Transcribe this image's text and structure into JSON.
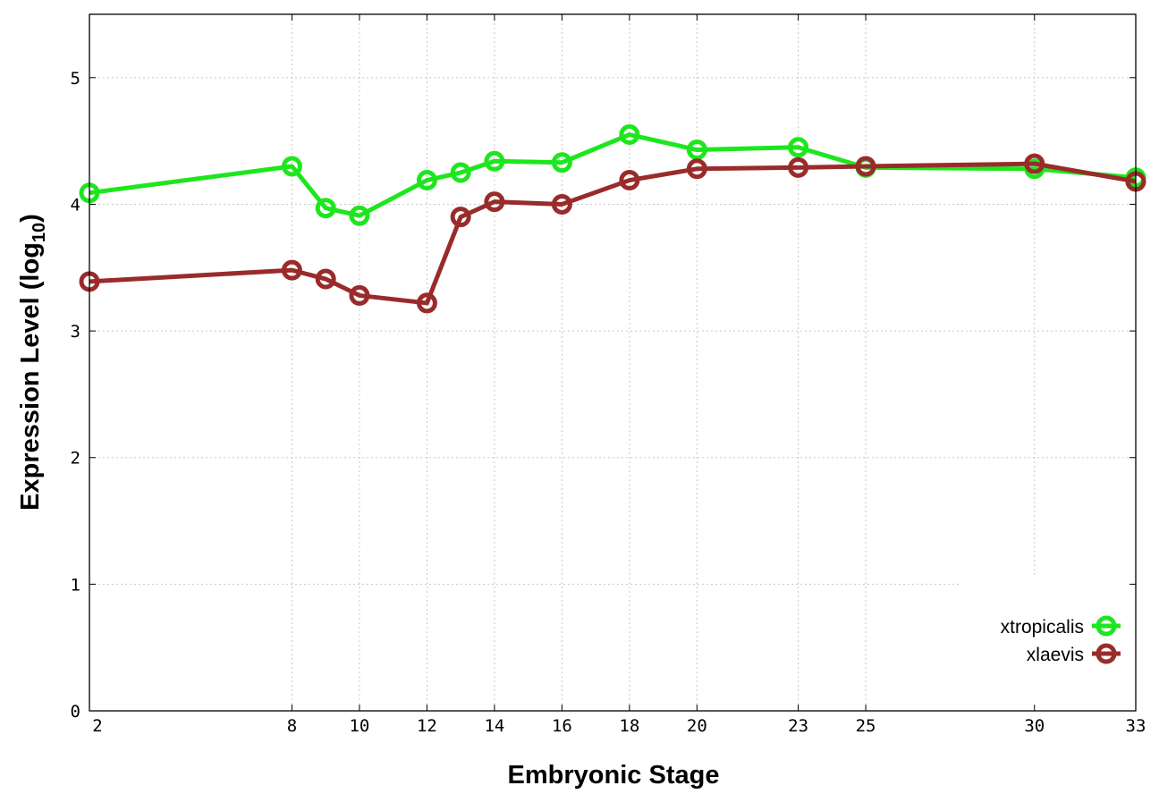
{
  "chart_data": {
    "type": "line",
    "xlabel": "Embryonic Stage",
    "ylabel": "Expression Level (log",
    "ylabel_sub": "10",
    "ylabel_close": ")",
    "xlim": [
      2,
      33
    ],
    "ylim": [
      0,
      5.5
    ],
    "x_ticks": [
      2,
      8,
      10,
      12,
      14,
      16,
      18,
      20,
      23,
      25,
      30,
      33
    ],
    "x_tick_labels": [
      "2",
      "8",
      "10",
      "12",
      "14",
      "16",
      "18",
      "20",
      "23",
      "25",
      "30",
      "33"
    ],
    "y_ticks": [
      0,
      1,
      2,
      3,
      4,
      5
    ],
    "y_tick_labels": [
      "0",
      "1",
      "2",
      "3",
      "4",
      "5"
    ],
    "grid": true,
    "legend_position": "bottom-right",
    "x": [
      2,
      8,
      9,
      10,
      12,
      13,
      14,
      16,
      18,
      20,
      23,
      25,
      30,
      33
    ],
    "series": [
      {
        "name": "xtropicalis",
        "color": "#1ee61e",
        "values": [
          4.09,
          4.3,
          3.97,
          3.91,
          4.19,
          4.25,
          4.34,
          4.33,
          4.55,
          4.43,
          4.45,
          4.29,
          4.28,
          4.21
        ]
      },
      {
        "name": "xlaevis",
        "color": "#992b2b",
        "values": [
          3.39,
          3.48,
          3.41,
          3.28,
          3.22,
          3.9,
          4.02,
          4.0,
          4.19,
          4.28,
          4.29,
          4.3,
          4.32,
          4.18
        ]
      }
    ]
  }
}
